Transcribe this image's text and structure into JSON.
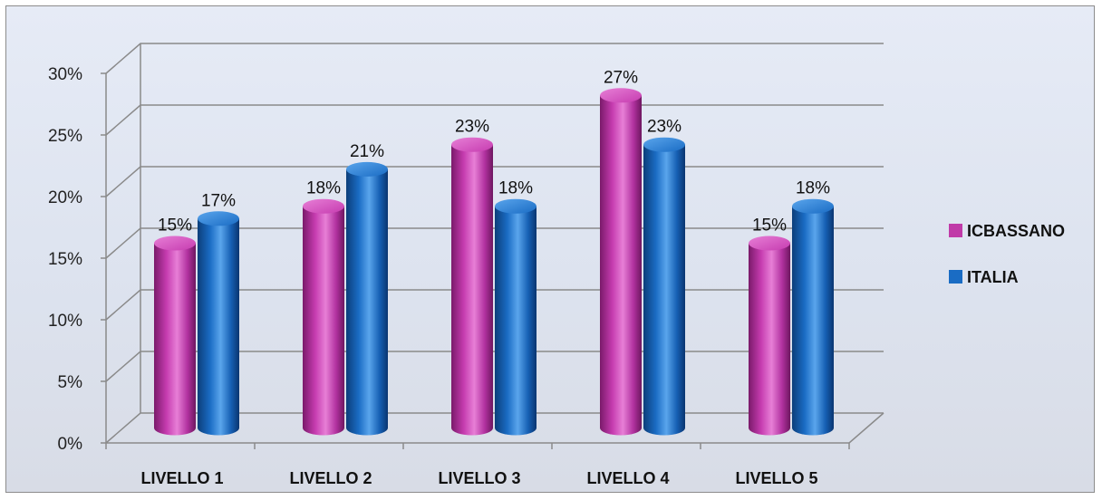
{
  "chart_data": {
    "type": "bar",
    "title": "",
    "xlabel": "",
    "ylabel": "",
    "categories": [
      "LIVELLO 1",
      "LIVELLO 2",
      "LIVELLO 3",
      "LIVELLO 4",
      "LIVELLO 5"
    ],
    "series": [
      {
        "name": "ICBASSANO",
        "color": "#c03aa8",
        "values": [
          15,
          18,
          23,
          27,
          15
        ]
      },
      {
        "name": "ITALIA",
        "color": "#1a6cc4",
        "values": [
          17,
          21,
          18,
          23,
          18
        ]
      }
    ],
    "ylim": [
      0,
      30
    ],
    "yticks": [
      0,
      5,
      10,
      15,
      20,
      25,
      30
    ],
    "ytick_labels": [
      "0%",
      "5%",
      "10%",
      "15%",
      "20%",
      "25%",
      "30%"
    ],
    "data_labels": [
      [
        "15%",
        "18%",
        "23%",
        "27%",
        "15%"
      ],
      [
        "17%",
        "21%",
        "18%",
        "23%",
        "18%"
      ]
    ],
    "grid": true,
    "three_d": true,
    "bar_shape": "cylinder",
    "legend_position": "right"
  }
}
